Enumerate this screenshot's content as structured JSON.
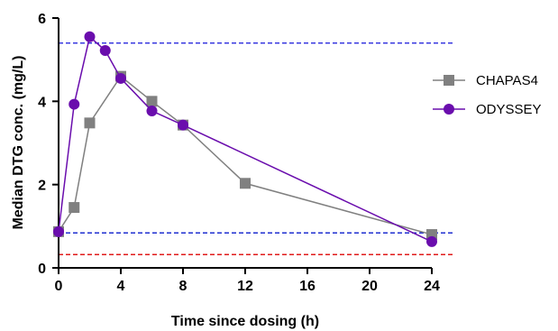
{
  "chart_data": {
    "type": "line",
    "title": "",
    "xlabel": "Time since dosing (h)",
    "ylabel": "Median DTG conc. (mg/L)",
    "xlim": [
      0,
      24
    ],
    "ylim": [
      0,
      6
    ],
    "x_ticks": [
      0,
      4,
      8,
      12,
      16,
      20,
      24
    ],
    "y_ticks": [
      0,
      2,
      4,
      6
    ],
    "grid": false,
    "legend_position": "right",
    "series": [
      {
        "name": "CHAPAS4",
        "marker": "square",
        "color": "#808080",
        "x": [
          0,
          1,
          2,
          4,
          6,
          8,
          12,
          24
        ],
        "values": [
          0.87,
          1.45,
          3.48,
          4.6,
          4.0,
          3.43,
          2.03,
          0.8
        ]
      },
      {
        "name": "ODYSSEY",
        "marker": "circle",
        "color": "#6a0dad",
        "x": [
          0,
          1,
          2,
          3,
          4,
          6,
          8,
          24
        ],
        "values": [
          0.87,
          3.93,
          5.55,
          5.22,
          4.55,
          3.77,
          3.43,
          0.63
        ]
      }
    ],
    "reference_lines": [
      {
        "y": 5.4,
        "color": "#3a3ae0",
        "style": "dashed"
      },
      {
        "y": 0.84,
        "color": "#1f2fd0",
        "style": "dashed"
      },
      {
        "y": 0.32,
        "color": "#e01b1b",
        "style": "dashed"
      }
    ]
  }
}
